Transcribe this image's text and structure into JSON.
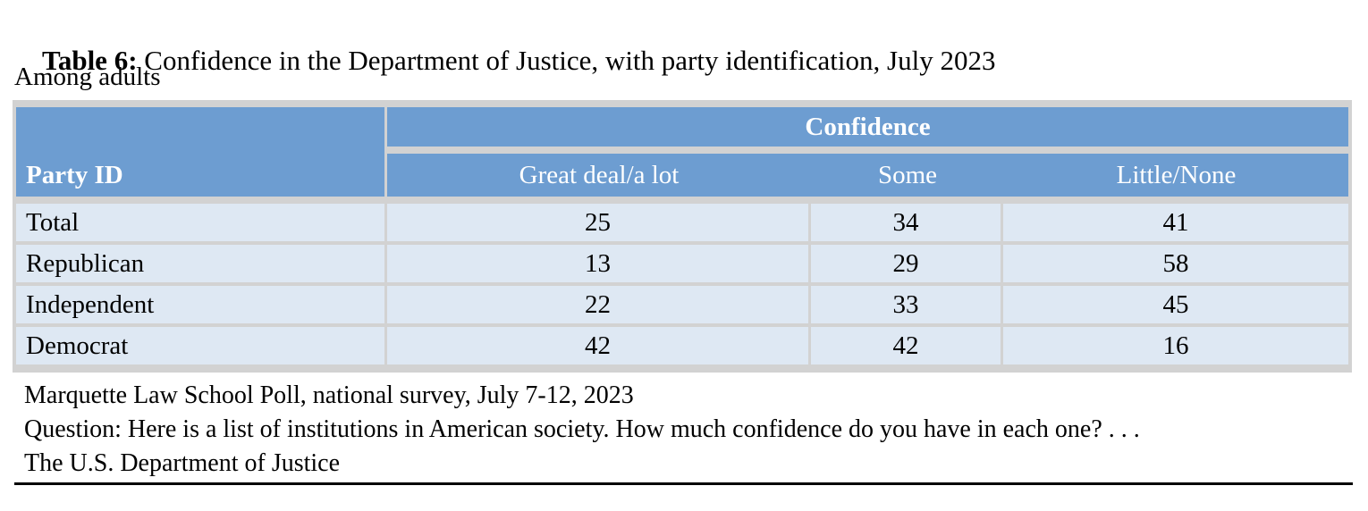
{
  "page": {
    "title_prefix": "Table 6:",
    "title_rest": " Confidence in the Department of Justice, with party identification, July 2023",
    "subtitle": "Among adults"
  },
  "table": {
    "corner_header": "Party ID",
    "group_header": "Confidence",
    "columns": [
      "Great deal/a lot",
      "Some",
      "Little/None"
    ],
    "rows": [
      {
        "label": "Total",
        "values": [
          "25",
          "34",
          "41"
        ]
      },
      {
        "label": "Republican",
        "values": [
          "13",
          "29",
          "58"
        ]
      },
      {
        "label": "Independent",
        "values": [
          "22",
          "33",
          "45"
        ]
      },
      {
        "label": "Democrat",
        "values": [
          "42",
          "42",
          "16"
        ]
      }
    ],
    "colors": {
      "header_bg": "#6d9dd1",
      "row_bg": "#dee8f3",
      "border": "#d2d2d2",
      "header_text": "#ffffff"
    }
  },
  "footer": {
    "source": "Marquette Law School Poll, national survey, July 7-12, 2023",
    "question_line1": "Question: Here is a list of institutions in American society. How much confidence do you have in each one? . . .",
    "question_line2": "The U.S. Department of Justice"
  }
}
